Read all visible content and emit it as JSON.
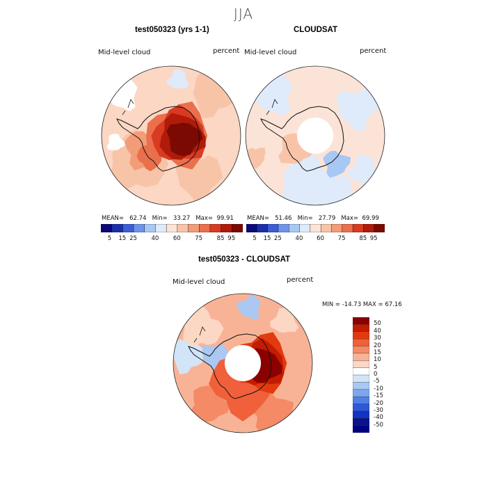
{
  "season": "JJA",
  "panels": {
    "model": {
      "title": "test050323 (yrs 1-1)",
      "field": "Mid-level cloud",
      "units": "percent",
      "stats": {
        "mean_label": "MEAN=",
        "mean": "62.74",
        "min_label": "Min=",
        "min": "33.27",
        "max_label": "Max=",
        "max": "99.91"
      }
    },
    "obs": {
      "title": "CLOUDSAT",
      "field": "Mid-level cloud",
      "units": "percent",
      "stats": {
        "mean_label": "MEAN=",
        "mean": "51.46",
        "min_label": "Min=",
        "min": "27.79",
        "max_label": "Max=",
        "max": "69.99"
      }
    },
    "diff": {
      "title": "test050323 - CLOUDSAT",
      "field": "Mid-level cloud",
      "units": "percent",
      "stats_text": "MIN = -14.73 MAX =   67.16"
    }
  },
  "colorbar_abs": {
    "colors": [
      "#0c0a7a",
      "#1c2fa8",
      "#3b5ed8",
      "#6f93ea",
      "#a8c8f4",
      "#dfeafb",
      "#fbe4d7",
      "#f8c4a8",
      "#f29c78",
      "#ea6f4d",
      "#d93b22",
      "#b01b0a",
      "#7a0a02"
    ],
    "tick_labels": [
      "5",
      "15",
      "25",
      "40",
      "60",
      "75",
      "85",
      "95"
    ]
  },
  "colorbar_diff": {
    "colors": [
      "#8b0000",
      "#c41c00",
      "#e23a0f",
      "#f0603a",
      "#f48a66",
      "#f8b396",
      "#fbd7c4",
      "#ffffff",
      "#d2e4f8",
      "#aac8f2",
      "#7ea6ec",
      "#5080e4",
      "#2e58dc",
      "#1233c4",
      "#08138c"
    ],
    "tick_labels": [
      "50",
      "40",
      "30",
      "20",
      "15",
      "10",
      "5",
      "0",
      "-5",
      "-10",
      "-15",
      "-20",
      "-30",
      "-40",
      "-50"
    ]
  }
}
